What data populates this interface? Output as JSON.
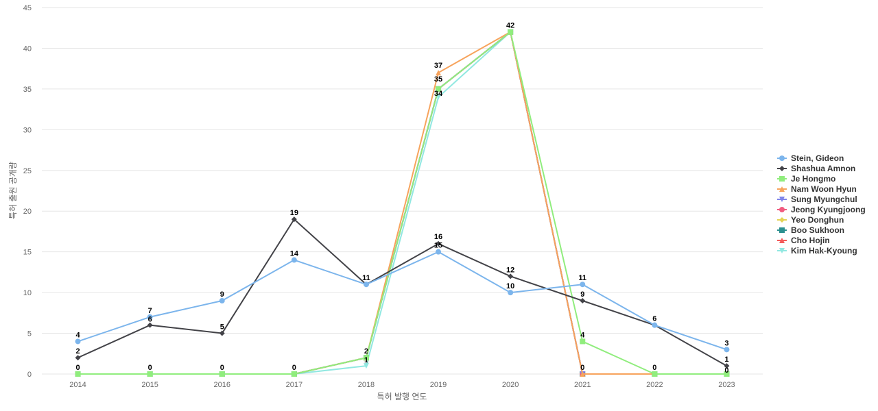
{
  "chart_data": {
    "type": "line",
    "title": "",
    "xlabel": "특허 발행 연도",
    "ylabel": "특허 출원 공개량",
    "x": [
      "2014",
      "2015",
      "2016",
      "2017",
      "2018",
      "2019",
      "2020",
      "2021",
      "2022",
      "2023"
    ],
    "ylim": [
      0,
      45
    ],
    "yticks": [
      0,
      5,
      10,
      15,
      20,
      25,
      30,
      35,
      40,
      45
    ],
    "grid": true,
    "legend_position": "right",
    "series": [
      {
        "name": "Stein, Gideon",
        "color": "#7cb5ec",
        "marker": "circle",
        "values": [
          4,
          7,
          9,
          14,
          11,
          15,
          10,
          11,
          6,
          3
        ]
      },
      {
        "name": "Shashua Amnon",
        "color": "#434348",
        "marker": "diamond",
        "values": [
          2,
          6,
          5,
          19,
          11,
          16,
          12,
          9,
          6,
          1
        ]
      },
      {
        "name": "Je Hongmo",
        "color": "#90ed7d",
        "marker": "square",
        "values": [
          0,
          0,
          0,
          0,
          2,
          35,
          42,
          4,
          0,
          0
        ]
      },
      {
        "name": "Nam Woon Hyun",
        "color": "#f7a35c",
        "marker": "triangle",
        "values": [
          0,
          0,
          0,
          0,
          2,
          37,
          42,
          0,
          0,
          0
        ]
      },
      {
        "name": "Sung Myungchul",
        "color": "#8085e9",
        "marker": "triangle-down",
        "values": [
          0,
          0,
          0,
          0,
          2,
          35,
          42,
          0,
          0,
          0
        ]
      },
      {
        "name": "Jeong Kyungjoong",
        "color": "#f15c80",
        "marker": "circle",
        "values": [
          0,
          0,
          0,
          0,
          2,
          35,
          42,
          0,
          0,
          0
        ]
      },
      {
        "name": "Yeo Donghun",
        "color": "#e4d354",
        "marker": "diamond",
        "values": [
          0,
          0,
          0,
          0,
          2,
          35,
          42,
          0,
          0,
          0
        ]
      },
      {
        "name": "Boo Sukhoon",
        "color": "#2b908f",
        "marker": "square",
        "values": [
          0,
          0,
          0,
          0,
          2,
          35,
          42,
          0,
          0,
          0
        ]
      },
      {
        "name": "Cho Hojin",
        "color": "#f45b5b",
        "marker": "triangle",
        "values": [
          0,
          0,
          0,
          0,
          2,
          35,
          42,
          0,
          0,
          0
        ]
      },
      {
        "name": "Kim Hak-Kyoung",
        "color": "#91e8e1",
        "marker": "triangle-down",
        "values": [
          0,
          0,
          0,
          0,
          1,
          34,
          42,
          0,
          0,
          0
        ]
      }
    ],
    "data_labels": [
      {
        "x": "2014",
        "value": "4"
      },
      {
        "x": "2014",
        "value": "2"
      },
      {
        "x": "2014",
        "value": "0"
      },
      {
        "x": "2015",
        "value": "7"
      },
      {
        "x": "2015",
        "value": "6"
      },
      {
        "x": "2015",
        "value": "0"
      },
      {
        "x": "2016",
        "value": "9"
      },
      {
        "x": "2016",
        "value": "5"
      },
      {
        "x": "2016",
        "value": "0"
      },
      {
        "x": "2017",
        "value": "19"
      },
      {
        "x": "2017",
        "value": "14"
      },
      {
        "x": "2017",
        "value": "0"
      },
      {
        "x": "2018",
        "value": "11"
      },
      {
        "x": "2018",
        "value": "2"
      },
      {
        "x": "2018",
        "value": "1"
      },
      {
        "x": "2019",
        "value": "37"
      },
      {
        "x": "2019",
        "value": "35"
      },
      {
        "x": "2019",
        "value": "34"
      },
      {
        "x": "2019",
        "value": "16"
      },
      {
        "x": "2019",
        "value": "15"
      },
      {
        "x": "2020",
        "value": "42"
      },
      {
        "x": "2020",
        "value": "12"
      },
      {
        "x": "2020",
        "value": "10"
      },
      {
        "x": "2021",
        "value": "11"
      },
      {
        "x": "2021",
        "value": "9"
      },
      {
        "x": "2021",
        "value": "4"
      },
      {
        "x": "2021",
        "value": "0"
      },
      {
        "x": "2022",
        "value": "6"
      },
      {
        "x": "2022",
        "value": "0"
      },
      {
        "x": "2023",
        "value": "3"
      },
      {
        "x": "2023",
        "value": "1"
      },
      {
        "x": "2023",
        "value": "0"
      }
    ]
  }
}
